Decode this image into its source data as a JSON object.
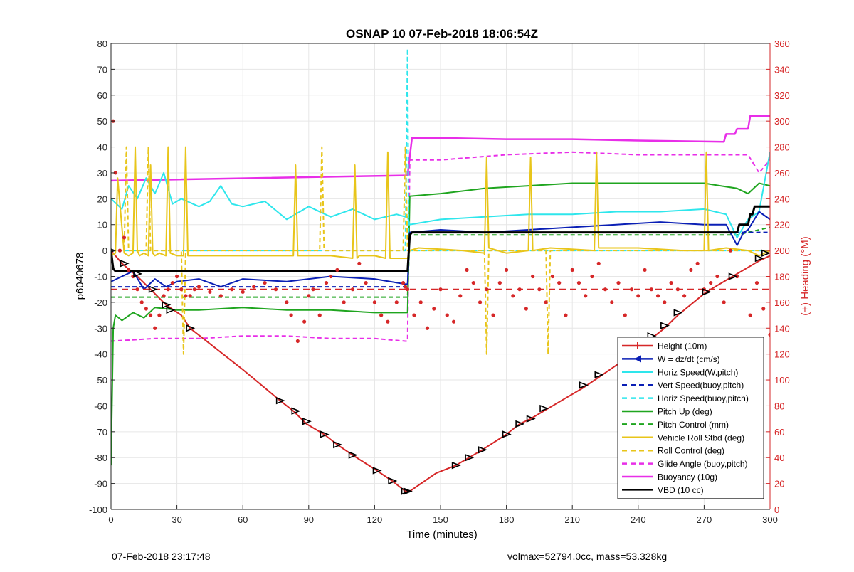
{
  "chart_data": {
    "type": "line",
    "title": "OSNAP 10 07-Feb-2018 18:06:54Z",
    "xlabel": "Time (minutes)",
    "ylabel": "p6040678",
    "y2label": "(+) Heading (°M)",
    "xlim": [
      0,
      300
    ],
    "ylim": [
      -100,
      80
    ],
    "y2lim": [
      0,
      360
    ],
    "xticks": [
      "0",
      "30",
      "60",
      "90",
      "120",
      "150",
      "180",
      "210",
      "240",
      "270",
      "300"
    ],
    "yticks": [
      "80",
      "70",
      "60",
      "50",
      "40",
      "30",
      "20",
      "10",
      "0",
      "-10",
      "-20",
      "-30",
      "-40",
      "-50",
      "-60",
      "-70",
      "-80",
      "-90",
      "-100"
    ],
    "y2ticks": [
      "360",
      "340",
      "320",
      "300",
      "280",
      "260",
      "240",
      "220",
      "200",
      "180",
      "160",
      "140",
      "120",
      "100",
      "80",
      "60",
      "40",
      "20",
      "0"
    ],
    "grid": true,
    "legend_position": "bottom-right",
    "legend": [
      {
        "label": "Height (10m)",
        "color": "#d62728",
        "style": "solid",
        "marker": "plus"
      },
      {
        "label": "W = dz/dt (cm/s)",
        "color": "#0a1fb5",
        "style": "solid",
        "marker": "triangle"
      },
      {
        "label": "Horiz Speed(W,pitch)",
        "color": "#2ee6ec",
        "style": "solid"
      },
      {
        "label": "Vert Speed(buoy,pitch)",
        "color": "#0a1fb5",
        "style": "dashed"
      },
      {
        "label": "Horiz Speed(buoy,pitch)",
        "color": "#2ee6ec",
        "style": "dashed"
      },
      {
        "label": "Pitch Up (deg)",
        "color": "#1fa51f",
        "style": "solid"
      },
      {
        "label": "Pitch Control (mm)",
        "color": "#1fa51f",
        "style": "dashed"
      },
      {
        "label": "Vehicle Roll Stbd (deg)",
        "color": "#e8c51a",
        "style": "solid"
      },
      {
        "label": "Roll Control (deg)",
        "color": "#e8c51a",
        "style": "dashed"
      },
      {
        "label": "Glide Angle (buoy,pitch)",
        "color": "#e82ee8",
        "style": "dashed"
      },
      {
        "label": "Buoyancy (10g)",
        "color": "#e82ee8",
        "style": "solid"
      },
      {
        "label": "VBD (10 cc)",
        "color": "#000000",
        "style": "solid"
      }
    ],
    "series": [
      {
        "name": "Height (10m)",
        "color": "#d62728",
        "width": 2,
        "dash": "",
        "x": [
          0,
          5,
          12,
          18,
          25,
          32,
          36,
          60,
          77,
          83,
          89,
          97,
          103,
          110,
          121,
          128,
          134,
          135,
          136,
          148,
          157,
          163,
          169,
          180,
          186,
          191,
          197,
          215,
          222,
          234,
          240,
          246,
          252,
          258,
          271,
          283,
          295,
          300
        ],
        "y": [
          0,
          -5,
          -10,
          -15,
          -21,
          -25,
          -30,
          -46,
          -58,
          -62,
          -67,
          -71,
          -75,
          -79,
          -85,
          -89,
          -93,
          -93,
          -93,
          -86,
          -83,
          -80,
          -77,
          -71,
          -67,
          -65,
          -62,
          -53,
          -49,
          -42,
          -38,
          -34,
          -30,
          -25,
          -16,
          -10,
          -4,
          -2
        ]
      },
      {
        "name": "Buoyancy (10g)",
        "color": "#e82ee8",
        "width": 2.5,
        "dash": "",
        "x": [
          0,
          134,
          135,
          137,
          150,
          180,
          210,
          240,
          279,
          280,
          284,
          285,
          290,
          291,
          295,
          300
        ],
        "y": [
          27,
          29,
          29,
          43.5,
          43.5,
          43,
          43,
          42.5,
          42,
          45,
          45,
          47,
          47,
          52,
          52,
          52
        ]
      },
      {
        "name": "Glide Angle (buoy,pitch)",
        "color": "#e82ee8",
        "width": 2,
        "dash": "6,4",
        "x": [
          0,
          20,
          40,
          60,
          80,
          100,
          120,
          134,
          135,
          136,
          150,
          180,
          210,
          240,
          270,
          290,
          295,
          300
        ],
        "y": [
          -35,
          -34,
          -34,
          -33,
          -33,
          -34,
          -34,
          -35,
          -35,
          35,
          35,
          37,
          38,
          37,
          37,
          37,
          30,
          35
        ]
      },
      {
        "name": "Pitch Up (deg)",
        "color": "#1fa51f",
        "width": 2,
        "dash": "",
        "x": [
          0,
          1,
          2,
          5,
          10,
          15,
          20,
          30,
          40,
          60,
          80,
          100,
          120,
          134,
          135,
          136,
          150,
          170,
          190,
          210,
          230,
          250,
          270,
          285,
          290,
          295,
          300
        ],
        "y": [
          -83,
          -30,
          -25,
          -27,
          -24,
          -26,
          -22,
          -23,
          -23,
          -22,
          -23,
          -23,
          -24,
          -24,
          -24,
          21,
          22,
          24,
          25,
          26,
          26,
          26,
          26,
          24,
          22,
          26,
          25
        ]
      },
      {
        "name": "Pitch Control (mm)",
        "color": "#1fa51f",
        "width": 2,
        "dash": "6,4",
        "x": [
          0,
          135,
          136,
          240,
          285,
          300
        ],
        "y": [
          -18,
          -18,
          6,
          6,
          6,
          9
        ]
      },
      {
        "name": "Horiz Speed(W,pitch)",
        "color": "#2ee6ec",
        "width": 2,
        "dash": "",
        "x": [
          0,
          5,
          8,
          12,
          16,
          20,
          24,
          28,
          32,
          40,
          45,
          50,
          55,
          60,
          70,
          80,
          90,
          100,
          110,
          120,
          130,
          134,
          135,
          136,
          150,
          170,
          190,
          210,
          230,
          250,
          270,
          280,
          285,
          290,
          295,
          300
        ],
        "y": [
          20,
          16,
          25,
          20,
          28,
          22,
          30,
          18,
          20,
          17,
          19,
          25,
          18,
          17,
          19,
          12,
          17,
          13,
          16,
          12,
          14,
          13,
          13,
          10,
          12,
          13,
          14,
          14,
          15,
          15,
          16,
          14,
          5,
          12,
          15,
          38
        ]
      },
      {
        "name": "Horiz Speed(buoy,pitch)",
        "color": "#2ee6ec",
        "width": 2,
        "dash": "6,4",
        "x": [
          0,
          134,
          135,
          135.5,
          136,
          300
        ],
        "y": [
          0,
          0,
          78,
          5,
          0,
          0
        ]
      },
      {
        "name": "W = dz/dt (cm/s)",
        "color": "#0a1fb5",
        "width": 2,
        "dash": "",
        "x": [
          0,
          5,
          10,
          15,
          20,
          25,
          30,
          40,
          50,
          60,
          80,
          100,
          120,
          134,
          135,
          136,
          150,
          170,
          190,
          210,
          230,
          250,
          270,
          280,
          285,
          288,
          290,
          295,
          300
        ],
        "y": [
          -12,
          -10,
          -8,
          -15,
          -11,
          -14,
          -12,
          -11,
          -14,
          -11,
          -12,
          -10,
          -11,
          -13,
          -13,
          7,
          8,
          7,
          8,
          9,
          10,
          11,
          10,
          10,
          2,
          7,
          8,
          15,
          12
        ]
      },
      {
        "name": "Vert Speed(buoy,pitch)",
        "color": "#0a1fb5",
        "width": 2,
        "dash": "6,4",
        "x": [
          0,
          135,
          136,
          300
        ],
        "y": [
          -14,
          -14,
          7,
          7
        ]
      },
      {
        "name": "Vehicle Roll Stbd (deg)",
        "color": "#e8c51a",
        "width": 2,
        "dash": "",
        "x": [
          0,
          2,
          3,
          6,
          8,
          10,
          11,
          12,
          13,
          15,
          17,
          18,
          19,
          20,
          22,
          25,
          26,
          27,
          30,
          33,
          34,
          35,
          40,
          80,
          83,
          84,
          85,
          90,
          100,
          110,
          111,
          112,
          113,
          120,
          125,
          126,
          127,
          134,
          135,
          136,
          140,
          160,
          170,
          171,
          172,
          180,
          190,
          191,
          192,
          200,
          220,
          221,
          222,
          240,
          260,
          270,
          271,
          272,
          280,
          290,
          295,
          300
        ],
        "y": [
          -2,
          -1,
          28,
          -1,
          -2,
          -1,
          40,
          0,
          -2,
          -1,
          -2,
          33,
          -1,
          -2,
          -1,
          -2,
          40,
          -1,
          -2,
          -2,
          40,
          -2,
          -2,
          -2,
          -2,
          33,
          -2,
          -2,
          -2,
          -3,
          33,
          -3,
          -2,
          -2,
          -3,
          38,
          -3,
          -3,
          -3,
          0,
          1,
          0,
          -1,
          36,
          1,
          -1,
          0,
          36,
          0,
          1,
          0,
          38,
          1,
          1,
          0,
          0,
          38,
          0,
          1,
          0,
          -2,
          0
        ]
      },
      {
        "name": "Roll Control (deg)",
        "color": "#e8c51a",
        "width": 2,
        "dash": "6,4",
        "x": [
          0,
          6,
          7,
          8,
          16,
          17,
          18,
          32,
          33,
          34,
          90,
          95,
          96,
          97,
          133,
          134,
          135,
          136,
          170,
          171,
          172,
          198,
          199,
          200,
          300
        ],
        "y": [
          0,
          0,
          40,
          0,
          0,
          40,
          0,
          0,
          -40,
          0,
          0,
          0,
          40,
          0,
          0,
          40,
          0,
          0,
          0,
          -40,
          0,
          0,
          -40,
          0,
          0
        ]
      },
      {
        "name": "VBD (10 cc)",
        "color": "#000000",
        "width": 3,
        "dash": "",
        "x": [
          0,
          1,
          2,
          5,
          134,
          135,
          136,
          137,
          150,
          180,
          200,
          240,
          280,
          285,
          286,
          290,
          291,
          292,
          293,
          300
        ],
        "y": [
          0,
          -7,
          -8,
          -8,
          -8,
          -8,
          6,
          7,
          7,
          7,
          7,
          7,
          7,
          7,
          10,
          10,
          14,
          14,
          17,
          17
        ]
      },
      {
        "name": "Heading",
        "color": "#d62728",
        "width": 1,
        "dash": "",
        "axis": "y2",
        "mode": "markers",
        "x": [
          1,
          2,
          4,
          6,
          8,
          10,
          12,
          14,
          16,
          18,
          20,
          22,
          24,
          26,
          28,
          30,
          32,
          34,
          36,
          38,
          40,
          45,
          50,
          55,
          60,
          65,
          70,
          75,
          80,
          82,
          85,
          88,
          90,
          92,
          95,
          98,
          100,
          103,
          106,
          110,
          113,
          116,
          120,
          123,
          126,
          130,
          133,
          134,
          135,
          138,
          141,
          144,
          147,
          150,
          153,
          156,
          159,
          162,
          165,
          168,
          171,
          174,
          177,
          180,
          183,
          186,
          189,
          192,
          195,
          198,
          201,
          204,
          207,
          210,
          213,
          216,
          219,
          222,
          225,
          228,
          231,
          234,
          237,
          240,
          243,
          246,
          249,
          252,
          255,
          258,
          261,
          264,
          267,
          270,
          273,
          276,
          279,
          282,
          285,
          288,
          291,
          294,
          297,
          300
        ],
        "y": [
          300,
          260,
          200,
          210,
          185,
          180,
          170,
          160,
          155,
          150,
          140,
          150,
          165,
          170,
          175,
          180,
          170,
          165,
          165,
          170,
          172,
          168,
          165,
          170,
          168,
          172,
          175,
          170,
          160,
          150,
          130,
          145,
          165,
          170,
          150,
          175,
          180,
          185,
          160,
          170,
          190,
          175,
          160,
          150,
          145,
          160,
          175,
          172,
          170,
          150,
          160,
          140,
          155,
          170,
          150,
          145,
          165,
          185,
          175,
          160,
          170,
          150,
          175,
          185,
          165,
          170,
          155,
          180,
          170,
          160,
          180,
          175,
          150,
          185,
          175,
          165,
          180,
          190,
          170,
          160,
          175,
          150,
          170,
          165,
          185,
          170,
          165,
          160,
          175,
          170,
          165,
          185,
          190,
          170,
          175,
          180,
          160,
          200,
          180,
          130,
          150,
          175,
          155,
          135
        ]
      },
      {
        "name": "Heading mean",
        "color": "#d62728",
        "width": 2,
        "dash": "9,6",
        "axis": "y2",
        "x": [
          0,
          300
        ],
        "y": [
          170,
          170
        ]
      },
      {
        "name": "W markers",
        "color": "#000000",
        "width": 1,
        "dash": "",
        "mode": "triangles",
        "x": [
          0,
          6,
          12,
          19,
          25,
          27,
          36,
          77,
          84,
          89,
          97,
          103,
          110,
          121,
          128,
          134,
          135,
          157,
          163,
          169,
          180,
          186,
          191,
          197,
          215,
          222,
          234,
          240,
          246,
          252,
          258,
          271,
          283,
          295,
          298
        ],
        "y": [
          0,
          -5,
          -9,
          -15,
          -21,
          -23,
          -30,
          -58,
          -62,
          -66,
          -71,
          -75,
          -79,
          -85,
          -89,
          -93,
          -93,
          -83,
          -80,
          -77,
          -71,
          -67,
          -65,
          -61,
          -52,
          -48,
          -42,
          -37,
          -33,
          -29,
          -24,
          -16,
          -10,
          -3,
          -1
        ]
      }
    ]
  },
  "footer": {
    "left": "07-Feb-2018 23:17:48",
    "right": "volmax=52794.0cc, mass=53.328kg"
  }
}
